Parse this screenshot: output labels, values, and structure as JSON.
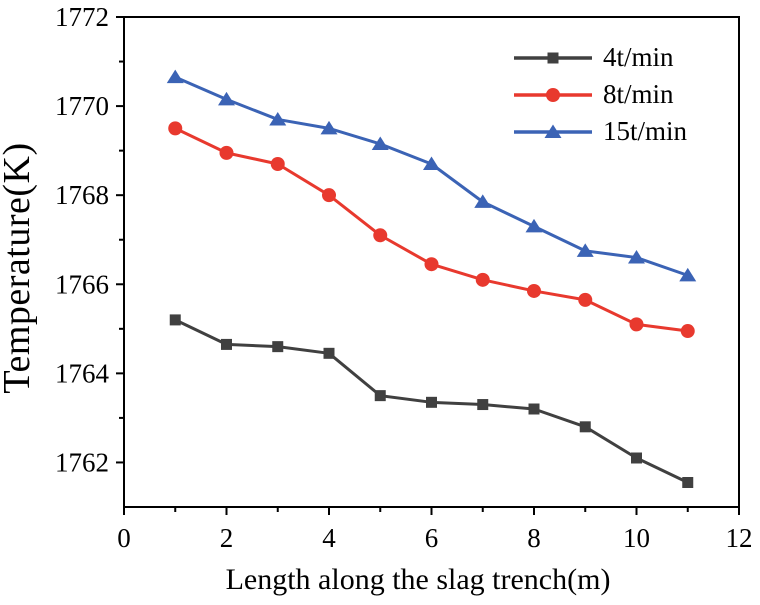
{
  "chart_data": {
    "type": "line",
    "title": "",
    "xlabel": "Length along the slag trench(m)",
    "ylabel": "Temperature(K)",
    "xlim": [
      0,
      12
    ],
    "ylim": [
      1761,
      1772
    ],
    "x_major_ticks": [
      0,
      2,
      4,
      6,
      8,
      10,
      12
    ],
    "x_minor_ticks": [
      1,
      3,
      5,
      7,
      9,
      11
    ],
    "y_major_ticks": [
      1762,
      1764,
      1766,
      1768,
      1770,
      1772
    ],
    "y_minor_ticks": [
      1763,
      1765,
      1767,
      1769,
      1771
    ],
    "grid": false,
    "legend_position": "top-right",
    "axis_color": "#000000",
    "x": [
      1,
      2,
      3,
      4,
      5,
      6,
      7,
      8,
      9,
      10,
      11
    ],
    "series": [
      {
        "name": "4t/min",
        "color": "#404040",
        "marker": "square",
        "values": [
          1765.2,
          1764.65,
          1764.6,
          1764.45,
          1763.5,
          1763.35,
          1763.3,
          1763.2,
          1762.8,
          1762.1,
          1761.55
        ]
      },
      {
        "name": "8t/min",
        "color": "#e8392e",
        "marker": "circle",
        "values": [
          1769.5,
          1768.95,
          1768.7,
          1768.0,
          1767.1,
          1766.45,
          1766.1,
          1765.85,
          1765.65,
          1765.1,
          1764.95
        ]
      },
      {
        "name": "15t/min",
        "color": "#3b63b5",
        "marker": "triangle",
        "values": [
          1770.65,
          1770.15,
          1769.7,
          1769.5,
          1769.15,
          1768.7,
          1767.85,
          1767.3,
          1766.75,
          1766.6,
          1766.2
        ]
      }
    ]
  }
}
